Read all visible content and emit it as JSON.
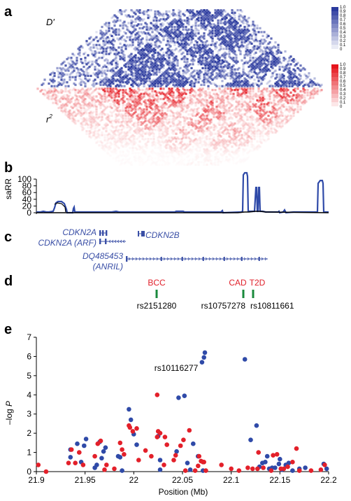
{
  "panels": {
    "a": "a",
    "b": "b",
    "c": "c",
    "d": "d",
    "e": "e"
  },
  "ld": {
    "dprime_label": "D′",
    "r2_label": "r",
    "r2_sup": "2",
    "legend_ticks": [
      "1.0",
      "0.9",
      "0.8",
      "0.7",
      "0.6",
      "0.5",
      "0.4",
      "0.3",
      "0.2",
      "0.1",
      "0"
    ],
    "blue": "#2b3a9e",
    "red": "#e5151d"
  },
  "sarr": {
    "ylabel": "saRR",
    "yticks": [
      "100",
      "80",
      "60",
      "40",
      "20",
      "0"
    ],
    "line_color": "#2f4aa8"
  },
  "genes": {
    "cdkn2a": "CDKN2A",
    "cdkn2a_arf": "CDKN2A (ARF)",
    "cdkn2b": "CDKN2B",
    "dq": "DQ485453",
    "anril": "(ANRIL)",
    "color": "#3a4fa6"
  },
  "associations": [
    {
      "trait": "BCC",
      "snp": "rs2151280"
    },
    {
      "trait": "CAD",
      "snp": "rs10757278"
    },
    {
      "trait": "T2D",
      "snp": "rs10811661"
    }
  ],
  "chart_data": {
    "type": "scatter",
    "xlabel": "Position (Mb)",
    "ylabel_prefix": "–log ",
    "ylabel_var": "P",
    "xlim": [
      21.9,
      22.2
    ],
    "ylim": [
      0,
      7
    ],
    "xticks": [
      "21.9",
      "21.95",
      "22",
      "22.05",
      "22.1",
      "22.15",
      "22.2"
    ],
    "yticks": [
      "0",
      "1",
      "2",
      "3",
      "4",
      "5",
      "6",
      "7"
    ],
    "annotation": "rs10116277",
    "colors": {
      "blue": "#2f4aa8",
      "red": "#e3202a"
    },
    "series": [
      {
        "color": "blue",
        "points": [
          [
            21.935,
            1.15
          ],
          [
            21.935,
            0.75
          ],
          [
            21.942,
            1.45
          ],
          [
            21.946,
            0.5
          ],
          [
            21.949,
            1.35
          ],
          [
            21.951,
            1.7
          ],
          [
            21.96,
            0.2
          ],
          [
            21.962,
            0.35
          ],
          [
            21.965,
            1.55
          ],
          [
            21.967,
            0.7
          ],
          [
            21.969,
            1.05
          ],
          [
            21.971,
            1.25
          ],
          [
            21.984,
            0.8
          ],
          [
            21.986,
            0.75
          ],
          [
            21.988,
            0.05
          ],
          [
            21.995,
            3.25
          ],
          [
            21.997,
            2.7
          ],
          [
            22.0,
            1.95
          ],
          [
            22.003,
            1.4
          ],
          [
            22.025,
            1.85
          ],
          [
            22.027,
            0.6
          ],
          [
            22.027,
            0.1
          ],
          [
            22.044,
            1.05
          ],
          [
            22.046,
            3.85
          ],
          [
            22.052,
            3.95
          ],
          [
            22.055,
            0.45
          ],
          [
            22.058,
            0.1
          ],
          [
            22.061,
            1.45
          ],
          [
            22.066,
            0.8
          ],
          [
            22.071,
            0.05
          ],
          [
            22.073,
            6.2
          ],
          [
            22.07,
            5.7
          ],
          [
            22.072,
            5.95
          ],
          [
            22.114,
            5.85
          ],
          [
            22.12,
            1.65
          ],
          [
            22.126,
            2.4
          ],
          [
            22.129,
            0.25
          ],
          [
            22.132,
            0.45
          ],
          [
            22.135,
            0.5
          ],
          [
            22.137,
            0.8
          ],
          [
            22.139,
            0.15
          ],
          [
            22.142,
            0.2
          ],
          [
            22.145,
            0.2
          ],
          [
            22.149,
            0.4
          ],
          [
            22.15,
            0.65
          ],
          [
            22.152,
            0.1
          ],
          [
            22.156,
            0.35
          ],
          [
            22.159,
            0.45
          ],
          [
            22.163,
            0.05
          ],
          [
            22.17,
            0.15
          ],
          [
            22.176,
            0.2
          ],
          [
            22.195,
            0.4
          ],
          [
            22.198,
            0.15
          ]
        ]
      },
      {
        "color": "red",
        "points": [
          [
            21.902,
            0.35
          ],
          [
            21.91,
            0.0
          ],
          [
            21.933,
            0.45
          ],
          [
            21.936,
            1.15
          ],
          [
            21.94,
            0.45
          ],
          [
            21.944,
            1.0
          ],
          [
            21.948,
            0.35
          ],
          [
            21.96,
            0.8
          ],
          [
            21.963,
            1.45
          ],
          [
            21.966,
            1.6
          ],
          [
            21.97,
            0.1
          ],
          [
            21.972,
            0.35
          ],
          [
            21.98,
            0.15
          ],
          [
            21.986,
            1.5
          ],
          [
            21.988,
            1.15
          ],
          [
            21.99,
            0.9
          ],
          [
            21.995,
            2.4
          ],
          [
            21.996,
            2.3
          ],
          [
            21.999,
            2.1
          ],
          [
            22.003,
            2.25
          ],
          [
            22.005,
            0.6
          ],
          [
            22.012,
            1.1
          ],
          [
            22.018,
            0.8
          ],
          [
            22.024,
            4.0
          ],
          [
            22.024,
            1.8
          ],
          [
            22.025,
            2.1
          ],
          [
            22.027,
            2.0
          ],
          [
            22.031,
            0.35
          ],
          [
            22.032,
            1.8
          ],
          [
            22.034,
            1.4
          ],
          [
            22.041,
            0.6
          ],
          [
            22.043,
            0.85
          ],
          [
            22.048,
            1.35
          ],
          [
            22.051,
            1.65
          ],
          [
            22.053,
            0.05
          ],
          [
            22.057,
            2.15
          ],
          [
            22.063,
            0.05
          ],
          [
            22.066,
            0.3
          ],
          [
            22.067,
            0.8
          ],
          [
            22.069,
            0.55
          ],
          [
            22.071,
            0.5
          ],
          [
            22.072,
            0.5
          ],
          [
            22.074,
            0.05
          ],
          [
            22.09,
            0.35
          ],
          [
            22.1,
            0.15
          ],
          [
            22.108,
            0.05
          ],
          [
            22.117,
            0.2
          ],
          [
            22.122,
            0.15
          ],
          [
            22.127,
            0.15
          ],
          [
            22.128,
            1.0
          ],
          [
            22.133,
            0.2
          ],
          [
            22.141,
            0.05
          ],
          [
            22.143,
            0.85
          ],
          [
            22.147,
            0.9
          ],
          [
            22.151,
            0.15
          ],
          [
            22.154,
            0.15
          ],
          [
            22.158,
            0.25
          ],
          [
            22.163,
            0.5
          ],
          [
            22.167,
            1.2
          ],
          [
            22.17,
            0.05
          ],
          [
            22.182,
            0.05
          ],
          [
            22.192,
            0.1
          ],
          [
            22.196,
            0.35
          ]
        ]
      }
    ]
  }
}
